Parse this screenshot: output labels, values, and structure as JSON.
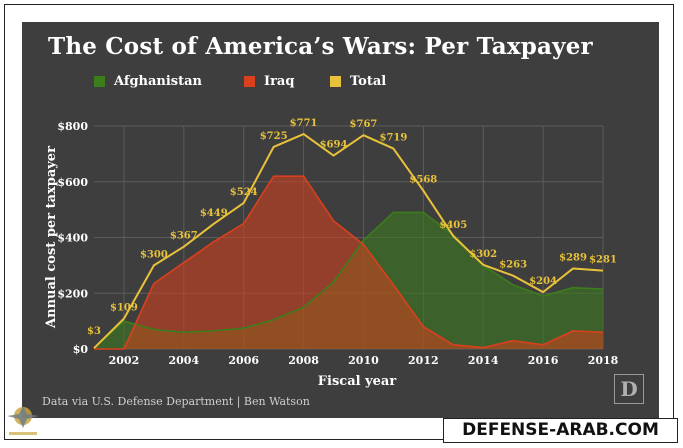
{
  "header": {
    "title": "The Cost of America’s Wars: Per Taxpayer"
  },
  "colors": {
    "afghanistan": "#3c7d1c",
    "iraq": "#d9401e",
    "total": "#e8c23a",
    "panel_background": "#3e3e3e"
  },
  "chart_data": {
    "type": "area",
    "title": "The Cost of America’s Wars: Per Taxpayer",
    "xlabel": "Fiscal year",
    "ylabel": "Annual cost per taxpayer",
    "x": [
      2001,
      2002,
      2003,
      2004,
      2005,
      2006,
      2007,
      2008,
      2009,
      2010,
      2011,
      2012,
      2013,
      2014,
      2015,
      2016,
      2017,
      2018
    ],
    "xlim": [
      2001,
      2018
    ],
    "ylim": [
      0,
      800
    ],
    "x_ticks": [
      2002,
      2004,
      2006,
      2008,
      2010,
      2012,
      2014,
      2016,
      2018
    ],
    "y_ticks": [
      0,
      200,
      400,
      600,
      800
    ],
    "y_tick_labels": [
      "$0",
      "$200",
      "$400",
      "$600",
      "$800"
    ],
    "grid": true,
    "series": [
      {
        "name": "Afghanistan",
        "values": [
          3,
          100,
          70,
          60,
          65,
          75,
          105,
          150,
          240,
          390,
          490,
          490,
          410,
          300,
          230,
          190,
          220,
          215
        ]
      },
      {
        "name": "Iraq",
        "values": [
          0,
          0,
          235,
          310,
          385,
          450,
          620,
          620,
          460,
          375,
          230,
          80,
          15,
          5,
          30,
          15,
          65,
          60
        ]
      },
      {
        "name": "Total",
        "values": [
          3,
          109,
          300,
          367,
          449,
          524,
          725,
          771,
          694,
          767,
          719,
          568,
          405,
          302,
          263,
          204,
          289,
          281
        ]
      }
    ],
    "data_labels": [
      "$3",
      "$109",
      "$300",
      "$367",
      "$449",
      "$524",
      "$725",
      "$771",
      "$694",
      "$767",
      "$719",
      "$568",
      "$405",
      "$302",
      "$263",
      "$204",
      "$289",
      "$281"
    ]
  },
  "legend": [
    {
      "label": "Afghanistan",
      "color": "#3c7d1c"
    },
    {
      "label": "Iraq",
      "color": "#d9401e"
    },
    {
      "label": "Total",
      "color": "#e8c23a"
    }
  ],
  "footer": {
    "credit": "Data via U.S. Defense Department | Ben Watson",
    "logo_letter": "D"
  },
  "watermark": {
    "site": "DEFENSE-ARAB.COM"
  }
}
